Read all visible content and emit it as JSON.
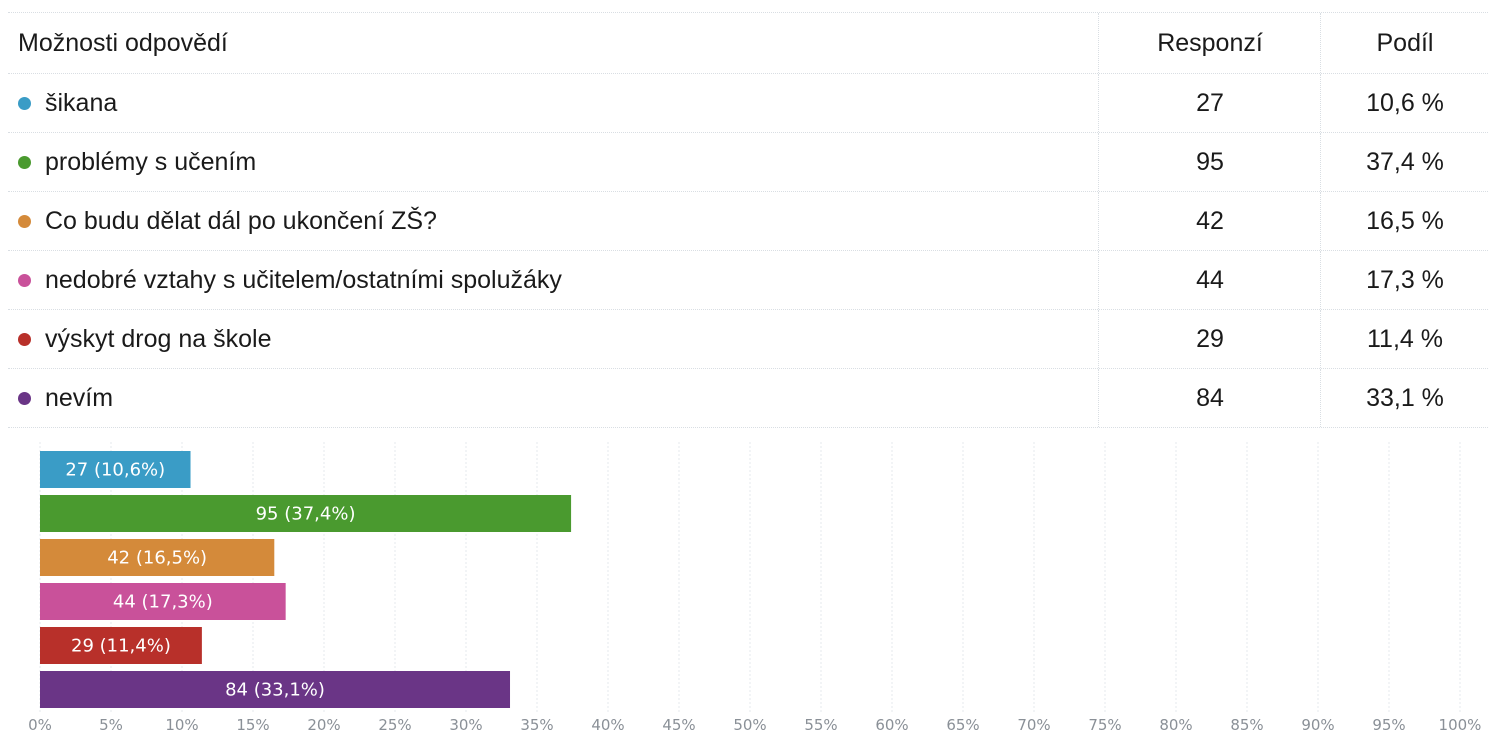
{
  "table": {
    "headers": {
      "label": "Možnosti odpovědí",
      "count": "Responzí",
      "share": "Podíl"
    },
    "rows": [
      {
        "label": "šikana",
        "count": "27",
        "share": "10,6 %",
        "color": "#3a9cc6"
      },
      {
        "label": "problémy s učením",
        "count": "95",
        "share": "37,4 %",
        "color": "#4a9a2f"
      },
      {
        "label": "Co budu dělat dál po ukončení ZŠ?",
        "count": "42",
        "share": "16,5 %",
        "color": "#d48a3a"
      },
      {
        "label": "nedobré vztahy s učitelem/ostatními spolužáky",
        "count": "44",
        "share": "17,3 %",
        "color": "#c9519a"
      },
      {
        "label": "výskyt drog na škole",
        "count": "29",
        "share": "11,4 %",
        "color": "#b8302a"
      },
      {
        "label": "nevím",
        "count": "84",
        "share": "33,1 %",
        "color": "#6a3586"
      }
    ]
  },
  "chart_data": {
    "type": "bar",
    "orientation": "horizontal",
    "categories": [
      "šikana",
      "problémy s učením",
      "Co budu dělat dál po ukončení ZŠ?",
      "nedobré vztahy s učitelem/ostatními spolužáky",
      "výskyt drog na škole",
      "nevím"
    ],
    "values": [
      10.6,
      37.4,
      16.5,
      17.3,
      11.4,
      33.1
    ],
    "counts": [
      27,
      95,
      42,
      44,
      29,
      84
    ],
    "data_labels": [
      "27 (10,6%)",
      "95 (37,4%)",
      "42 (16,5%)",
      "44 (17,3%)",
      "29 (11,4%)",
      "84 (33,1%)"
    ],
    "colors": [
      "#3a9cc6",
      "#4a9a2f",
      "#d48a3a",
      "#c9519a",
      "#b8302a",
      "#6a3586"
    ],
    "xlim": [
      0,
      100
    ],
    "x_ticks": [
      "0%",
      "5%",
      "10%",
      "15%",
      "20%",
      "25%",
      "30%",
      "35%",
      "40%",
      "45%",
      "50%",
      "55%",
      "60%",
      "65%",
      "70%",
      "75%",
      "80%",
      "85%",
      "90%",
      "95%",
      "100%"
    ],
    "grid": true
  }
}
